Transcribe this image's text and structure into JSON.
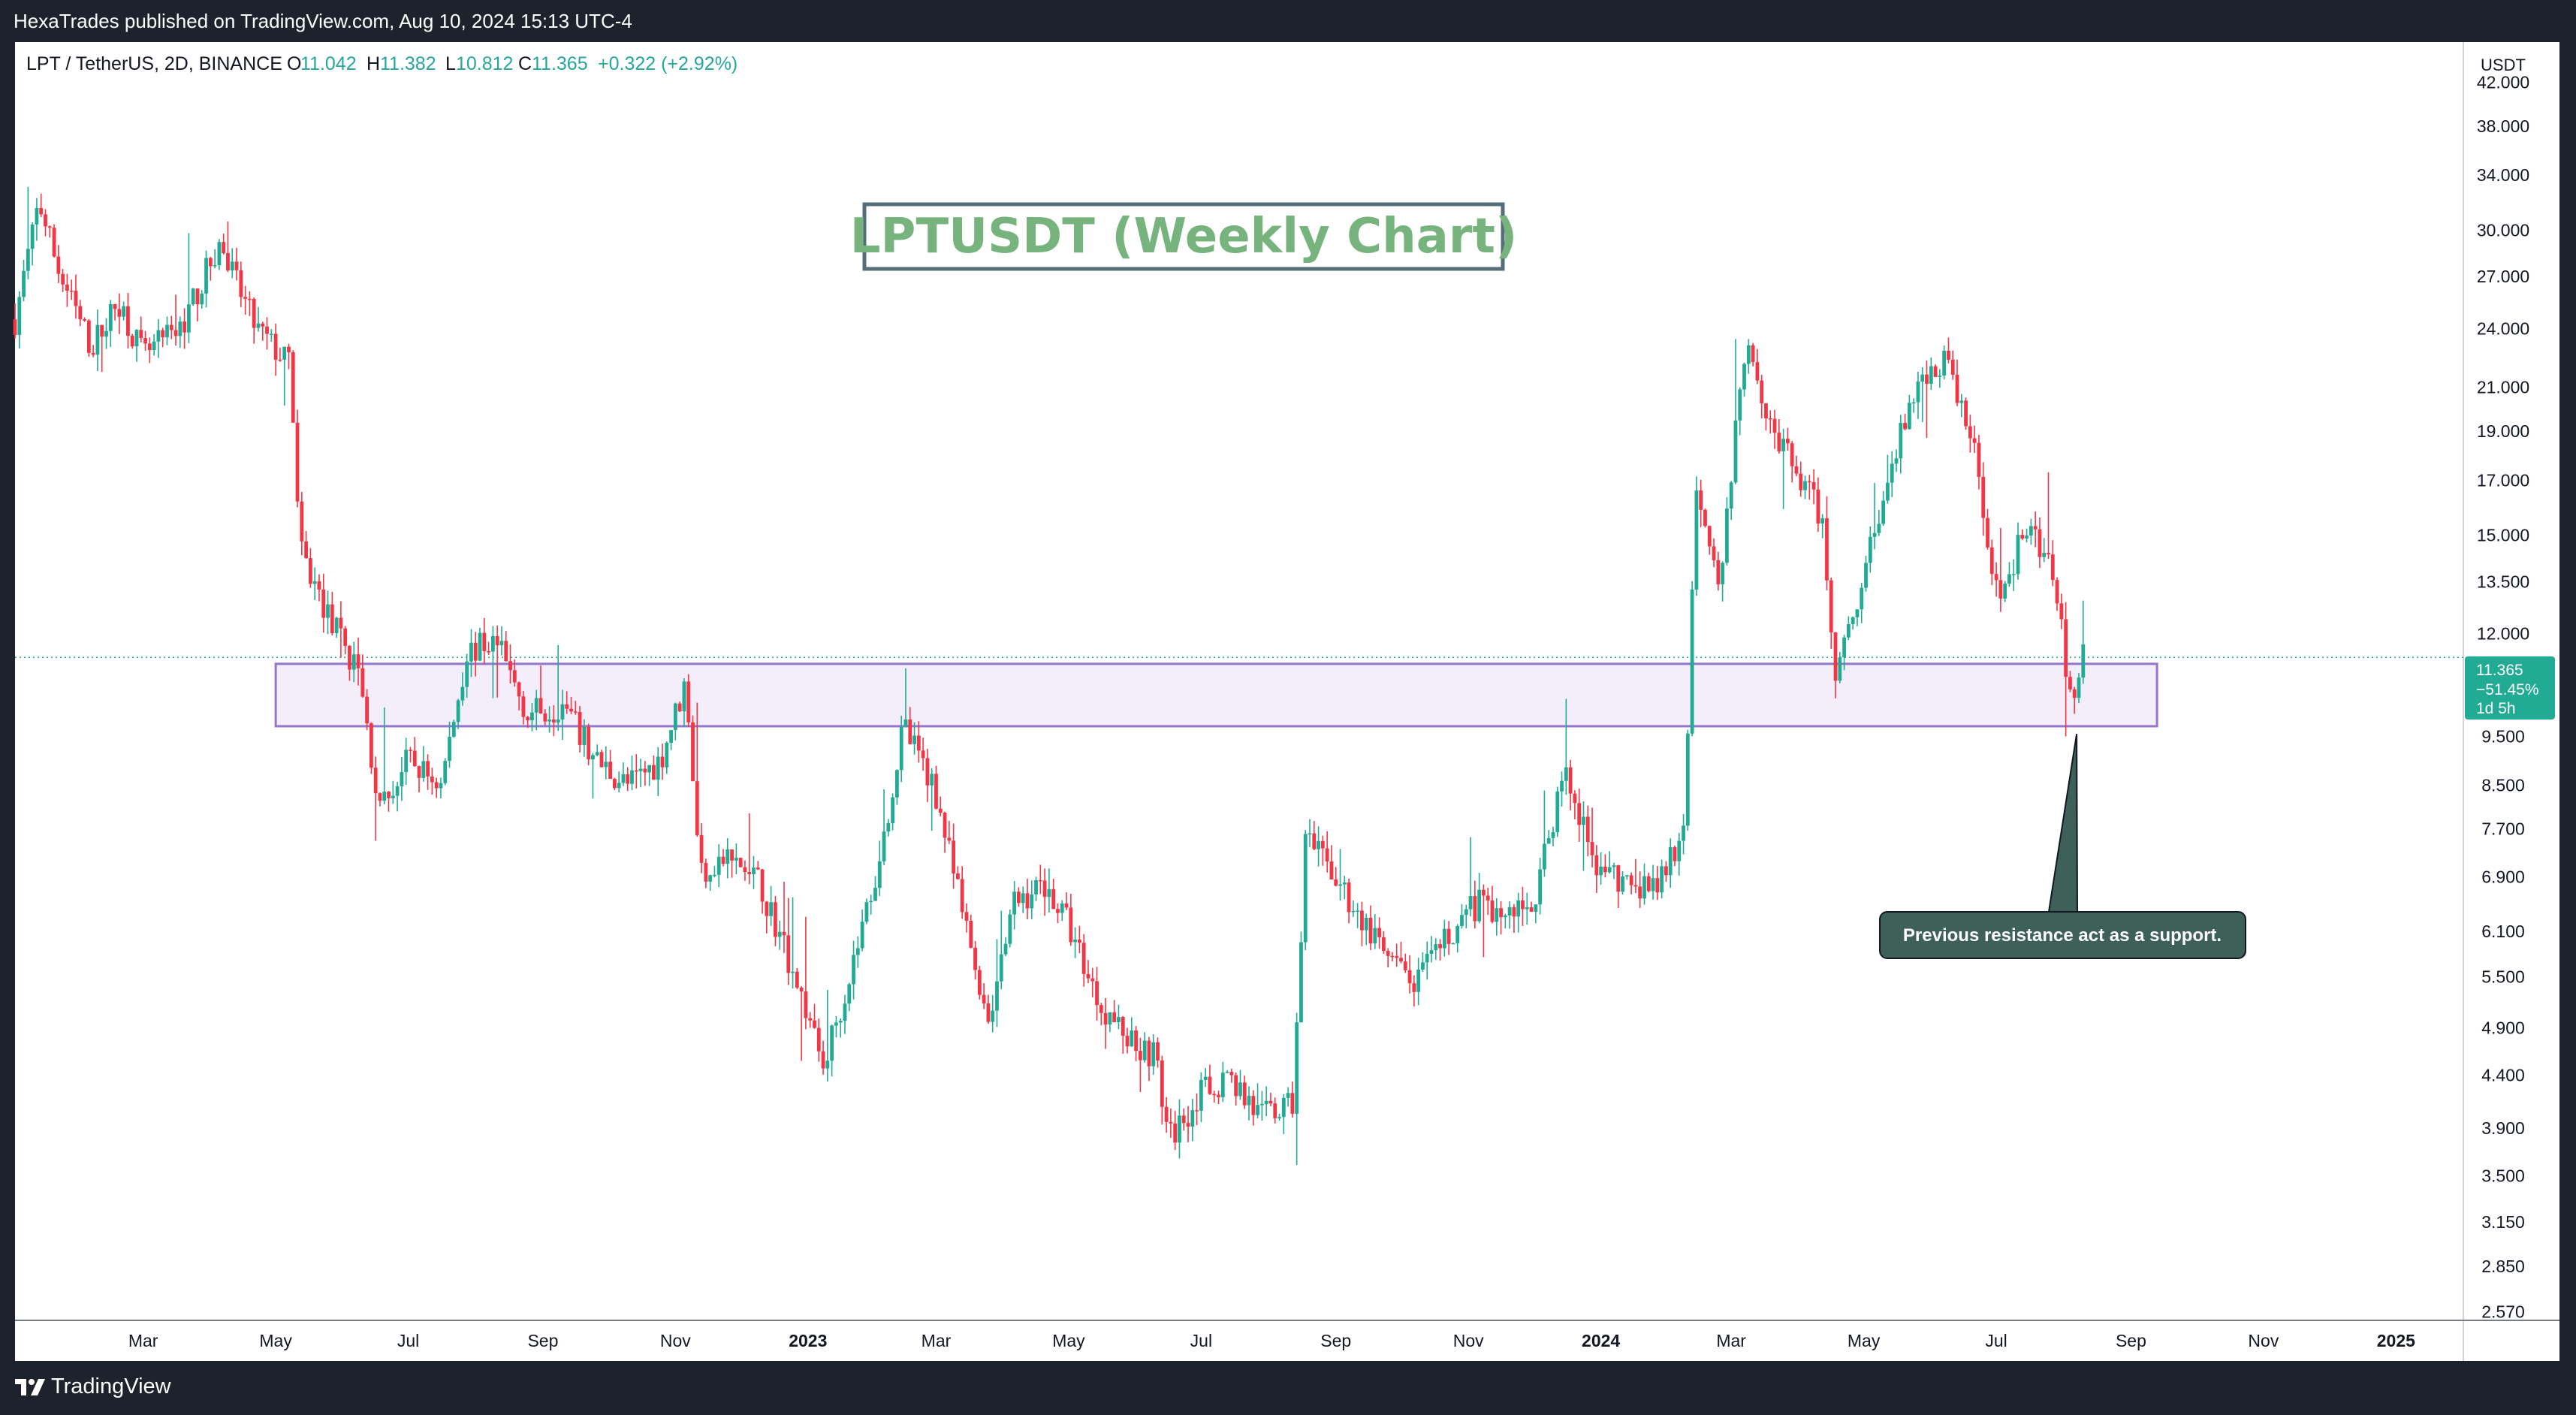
{
  "header": {
    "published": "HexaTrades published on TradingView.com, Aug 10, 2024 15:13 UTC-4"
  },
  "legend": {
    "symbol": "LPT / TetherUS, 2D, BINANCE",
    "o_label": "O",
    "o_value": "11.042",
    "h_label": "H",
    "h_value": "11.382",
    "l_label": "L",
    "l_value": "10.812",
    "c_label": "C",
    "c_value": "11.365",
    "change": "+0.322 (+2.92%)"
  },
  "price_badge": {
    "price": "11.365",
    "change": "−51.45%",
    "countdown": "1d 5h"
  },
  "footer": {
    "brand": "TradingView"
  },
  "colors": {
    "up": "#26a69a",
    "up_body": "#22ab94",
    "down": "#f23645",
    "zone_border": "#9575cd",
    "zone_fill": "#f3eefa",
    "title_green": "#77b37d",
    "title_border": "#546e7a",
    "callout": "#3d6059"
  },
  "chart_data": {
    "type": "candlestick",
    "title": "LPTUSDT (Weekly Chart)",
    "currency": "USDT",
    "scale": "log",
    "y_ticks": [
      "42.000",
      "38.000",
      "34.000",
      "30.000",
      "27.000",
      "24.000",
      "21.000",
      "19.000",
      "17.000",
      "15.000",
      "13.500",
      "12.000",
      "9.500",
      "8.500",
      "7.700",
      "6.900",
      "6.100",
      "5.500",
      "4.900",
      "4.400",
      "3.900",
      "3.500",
      "3.150",
      "2.850",
      "2.570"
    ],
    "x_ticks": [
      {
        "label": "Mar",
        "bold": false,
        "date": "2022-03-01"
      },
      {
        "label": "May",
        "bold": false,
        "date": "2022-05-01"
      },
      {
        "label": "Jul",
        "bold": false,
        "date": "2022-07-01"
      },
      {
        "label": "Sep",
        "bold": false,
        "date": "2022-09-01"
      },
      {
        "label": "Nov",
        "bold": false,
        "date": "2022-11-01"
      },
      {
        "label": "2023",
        "bold": true,
        "date": "2023-01-01"
      },
      {
        "label": "Mar",
        "bold": false,
        "date": "2023-03-01"
      },
      {
        "label": "May",
        "bold": false,
        "date": "2023-05-01"
      },
      {
        "label": "Jul",
        "bold": false,
        "date": "2023-07-01"
      },
      {
        "label": "Sep",
        "bold": false,
        "date": "2023-09-01"
      },
      {
        "label": "Nov",
        "bold": false,
        "date": "2023-11-01"
      },
      {
        "label": "2024",
        "bold": true,
        "date": "2024-01-01"
      },
      {
        "label": "Mar",
        "bold": false,
        "date": "2024-03-01"
      },
      {
        "label": "May",
        "bold": false,
        "date": "2024-05-01"
      },
      {
        "label": "Jul",
        "bold": false,
        "date": "2024-07-01"
      },
      {
        "label": "Sep",
        "bold": false,
        "date": "2024-09-01"
      },
      {
        "label": "Nov",
        "bold": false,
        "date": "2024-11-01"
      },
      {
        "label": "2025",
        "bold": true,
        "date": "2025-01-01"
      }
    ],
    "x_range": [
      "2022-01-01",
      "2025-02-01"
    ],
    "y_range": [
      2.52,
      46.0
    ],
    "current_price": 11.365,
    "support_zone": {
      "start": "2022-05-01",
      "end": "2024-09-13",
      "top": 11.2,
      "bottom": 9.72
    },
    "callout": {
      "text": "Previous resistance act as a support.",
      "anchor_date": "2024-08-07",
      "anchor_price": 9.55
    },
    "price_path": [
      [
        "2022-01-01",
        24.5
      ],
      [
        "2022-01-12",
        32.0
      ],
      [
        "2022-01-22",
        27.0
      ],
      [
        "2022-02-05",
        23.0
      ],
      [
        "2022-02-18",
        25.5
      ],
      [
        "2022-03-01",
        22.5
      ],
      [
        "2022-03-18",
        24.0
      ],
      [
        "2022-04-05",
        29.0
      ],
      [
        "2022-04-22",
        24.0
      ],
      [
        "2022-05-08",
        22.0
      ],
      [
        "2022-05-12",
        14.5
      ],
      [
        "2022-05-25",
        12.5
      ],
      [
        "2022-06-08",
        11.0
      ],
      [
        "2022-06-18",
        8.0
      ],
      [
        "2022-07-01",
        9.0
      ],
      [
        "2022-07-16",
        8.5
      ],
      [
        "2022-07-28",
        11.5
      ],
      [
        "2022-08-10",
        11.8
      ],
      [
        "2022-08-25",
        10.0
      ],
      [
        "2022-09-10",
        10.2
      ],
      [
        "2022-09-25",
        9.0
      ],
      [
        "2022-10-10",
        8.5
      ],
      [
        "2022-10-25",
        9.0
      ],
      [
        "2022-11-06",
        10.8
      ],
      [
        "2022-11-12",
        7.0
      ],
      [
        "2022-11-25",
        7.2
      ],
      [
        "2022-12-10",
        6.8
      ],
      [
        "2022-12-25",
        5.6
      ],
      [
        "2023-01-08",
        4.5
      ],
      [
        "2023-01-20",
        5.5
      ],
      [
        "2023-02-03",
        7.2
      ],
      [
        "2023-02-14",
        9.7
      ],
      [
        "2023-02-28",
        8.5
      ],
      [
        "2023-03-12",
        6.5
      ],
      [
        "2023-03-25",
        5.0
      ],
      [
        "2023-04-06",
        6.5
      ],
      [
        "2023-04-20",
        6.8
      ],
      [
        "2023-05-01",
        6.2
      ],
      [
        "2023-05-15",
        5.2
      ],
      [
        "2023-05-28",
        4.8
      ],
      [
        "2023-06-10",
        4.6
      ],
      [
        "2023-06-16",
        3.8
      ],
      [
        "2023-06-30",
        4.2
      ],
      [
        "2023-07-14",
        4.4
      ],
      [
        "2023-07-28",
        4.0
      ],
      [
        "2023-08-12",
        4.1
      ],
      [
        "2023-08-18",
        7.5
      ],
      [
        "2023-08-30",
        7.0
      ],
      [
        "2023-09-12",
        6.3
      ],
      [
        "2023-09-25",
        5.7
      ],
      [
        "2023-10-08",
        5.4
      ],
      [
        "2023-10-22",
        6.0
      ],
      [
        "2023-11-05",
        6.5
      ],
      [
        "2023-11-18",
        6.3
      ],
      [
        "2023-12-02",
        6.6
      ],
      [
        "2023-12-15",
        8.8
      ],
      [
        "2023-12-28",
        7.2
      ],
      [
        "2024-01-10",
        6.8
      ],
      [
        "2024-01-25",
        6.7
      ],
      [
        "2024-02-08",
        7.5
      ],
      [
        "2024-02-14",
        17.0
      ],
      [
        "2024-02-25",
        13.5
      ],
      [
        "2024-03-08",
        24.0
      ],
      [
        "2024-03-20",
        19.0
      ],
      [
        "2024-03-30",
        17.5
      ],
      [
        "2024-04-12",
        15.5
      ],
      [
        "2024-04-18",
        11.0
      ],
      [
        "2024-04-30",
        13.5
      ],
      [
        "2024-05-12",
        17.0
      ],
      [
        "2024-05-25",
        21.0
      ],
      [
        "2024-06-08",
        22.5
      ],
      [
        "2024-06-20",
        18.5
      ],
      [
        "2024-07-02",
        13.0
      ],
      [
        "2024-07-16",
        15.5
      ],
      [
        "2024-07-28",
        13.5
      ],
      [
        "2024-08-05",
        10.0
      ],
      [
        "2024-08-10",
        11.365
      ]
    ]
  }
}
